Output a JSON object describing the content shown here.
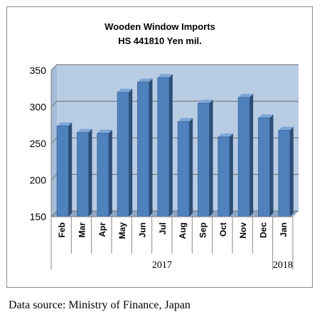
{
  "chart_data": {
    "type": "bar",
    "title": "Wooden Window Imports",
    "subtitle": "HS 441810 Yen mil.",
    "categories": [
      "Feb",
      "Mar",
      "Apr",
      "May",
      "Jun",
      "Jul",
      "Aug",
      "Sep",
      "Oct",
      "Nov",
      "Dec",
      "Jan"
    ],
    "values": [
      274,
      265,
      264,
      320,
      334,
      340,
      280,
      305,
      259,
      313,
      285,
      268
    ],
    "year_groups": [
      {
        "label": "2017",
        "span": 11
      },
      {
        "label": "2018",
        "span": 1
      }
    ],
    "ylim": [
      150,
      350
    ],
    "yticks": [
      150,
      200,
      250,
      300,
      350
    ],
    "grid": true,
    "legend": "none",
    "bar_color": "#4f81bd",
    "plot_background": "#b8cce4"
  },
  "source": "Data source: Ministry of Finance, Japan"
}
